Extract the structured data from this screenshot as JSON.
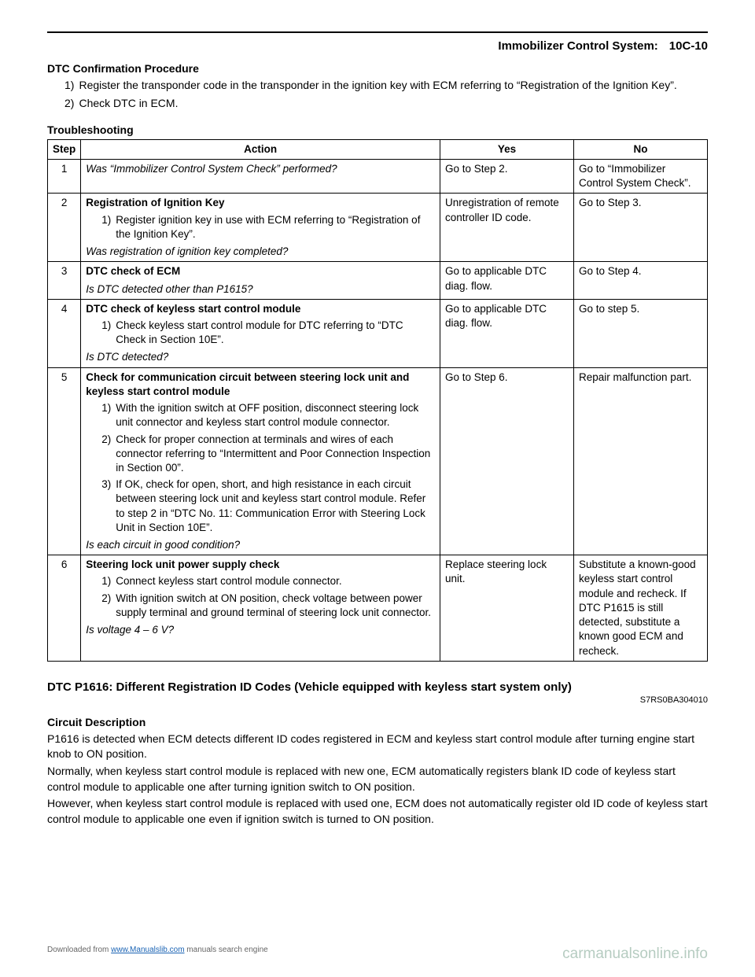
{
  "header": {
    "title": "Immobilizer Control System:",
    "page": "10C-10"
  },
  "dtc_confirm": {
    "heading": "DTC Confirmation Procedure",
    "items": [
      {
        "num": "1)",
        "text": "Register the transponder code in the transponder in the ignition key with ECM referring to “Registration of the Ignition Key”."
      },
      {
        "num": "2)",
        "text": "Check DTC in ECM."
      }
    ]
  },
  "troubleshooting": {
    "heading": "Troubleshooting",
    "columns": {
      "step": "Step",
      "action": "Action",
      "yes": "Yes",
      "no": "No"
    },
    "rows": [
      {
        "step": "1",
        "action_title": "",
        "action_ital_top": "Was “Immobilizer Control System Check” performed?",
        "subs": [],
        "action_ital_bottom": "",
        "yes": "Go to Step 2.",
        "no": "Go to “Immobilizer Control System Check”."
      },
      {
        "step": "2",
        "action_title": "Registration of Ignition Key",
        "action_ital_top": "",
        "subs": [
          {
            "num": "1)",
            "text": "Register ignition key in use with ECM referring to “Registration of the Ignition Key”."
          }
        ],
        "action_ital_bottom": "Was registration of ignition key completed?",
        "yes": "Unregistration of remote controller ID code.",
        "no": "Go to Step 3."
      },
      {
        "step": "3",
        "action_title": "DTC check of ECM",
        "action_ital_top": "",
        "subs": [],
        "action_ital_bottom": "Is DTC detected other than P1615?",
        "yes": "Go to applicable DTC diag. flow.",
        "no": "Go to Step 4."
      },
      {
        "step": "4",
        "action_title": "DTC check of keyless start control module",
        "action_ital_top": "",
        "subs": [
          {
            "num": "1)",
            "text": "Check keyless start control module for DTC referring to “DTC Check in Section 10E”."
          }
        ],
        "action_ital_bottom": "Is DTC detected?",
        "yes": "Go to applicable DTC diag. flow.",
        "no": "Go to step 5."
      },
      {
        "step": "5",
        "action_title": "Check for communication circuit between steering lock unit and keyless start control module",
        "action_ital_top": "",
        "subs": [
          {
            "num": "1)",
            "text": "With the ignition switch at OFF position, disconnect steering lock unit connector and keyless start control module connector."
          },
          {
            "num": "2)",
            "text": "Check for proper connection at terminals and wires of each connector referring to “Intermittent and Poor Connection Inspection in Section 00”."
          },
          {
            "num": "3)",
            "text": "If OK, check for open, short, and high resistance in each circuit between steering lock unit and keyless start control module. Refer to step 2 in “DTC No. 11: Communication Error with Steering Lock Unit in Section 10E”."
          }
        ],
        "action_ital_bottom": "Is each circuit in good condition?",
        "yes": "Go to Step 6.",
        "no": "Repair malfunction part."
      },
      {
        "step": "6",
        "action_title": "Steering lock unit power supply check",
        "action_ital_top": "",
        "subs": [
          {
            "num": "1)",
            "text": "Connect keyless start control module connector."
          },
          {
            "num": "2)",
            "text": "With ignition switch at ON position, check voltage between power supply terminal and ground terminal of steering lock unit connector."
          }
        ],
        "action_ital_bottom": "Is voltage 4 – 6 V?",
        "yes": "Replace steering lock unit.",
        "no": "Substitute a known-good keyless start control module and recheck. If DTC P1615 is still detected, substitute a known good ECM and recheck."
      }
    ]
  },
  "dtc_section": {
    "title": "DTC P1616: Different Registration ID Codes (Vehicle equipped with keyless start system only)",
    "doc_code": "S7RS0BA304010",
    "sub_heading": "Circuit Description",
    "paras": [
      "P1616 is detected when ECM detects different ID codes registered in ECM and keyless start control module after turning engine start knob to ON position.",
      "Normally, when keyless start control module is replaced with new one, ECM automatically registers blank ID code of keyless start control module to applicable one after turning ignition switch to ON position.",
      "However, when keyless start control module is replaced with used one, ECM does not automatically register old ID code of keyless start control module to applicable one even if ignition switch is turned to ON position."
    ]
  },
  "footer": {
    "left_prefix": "Downloaded from ",
    "left_link": "www.Manualslib.com",
    "left_suffix": " manuals search engine",
    "right": "carmanualsonline.info"
  }
}
